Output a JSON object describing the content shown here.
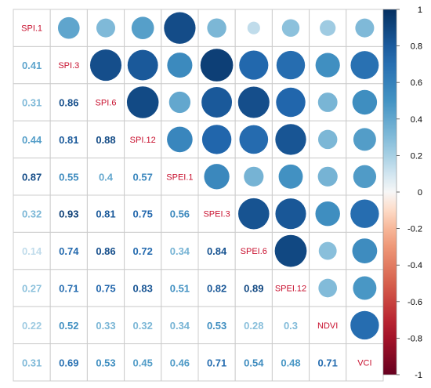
{
  "chart_data": {
    "type": "heatmap",
    "subtype": "correlation-matrix",
    "variables": [
      "SPI.1",
      "SPI.3",
      "SPI.6",
      "SPI.12",
      "SPEI.1",
      "SPEI.3",
      "SPEI.6",
      "SPEI.12",
      "NDVI",
      "VCI"
    ],
    "matrix": [
      [
        1,
        0.41,
        0.31,
        0.44,
        0.87,
        0.32,
        0.14,
        0.27,
        0.22,
        0.31
      ],
      [
        0.41,
        1,
        0.86,
        0.81,
        0.55,
        0.93,
        0.74,
        0.71,
        0.52,
        0.69
      ],
      [
        0.31,
        0.86,
        1,
        0.88,
        0.4,
        0.81,
        0.86,
        0.75,
        0.33,
        0.53
      ],
      [
        0.44,
        0.81,
        0.88,
        1,
        0.57,
        0.75,
        0.72,
        0.83,
        0.32,
        0.45
      ],
      [
        0.87,
        0.55,
        0.4,
        0.57,
        1,
        0.56,
        0.34,
        0.51,
        0.34,
        0.46
      ],
      [
        0.32,
        0.93,
        0.81,
        0.75,
        0.56,
        1,
        0.84,
        0.82,
        0.53,
        0.71
      ],
      [
        0.14,
        0.74,
        0.86,
        0.72,
        0.34,
        0.84,
        1,
        0.89,
        0.28,
        0.54
      ],
      [
        0.27,
        0.71,
        0.75,
        0.83,
        0.51,
        0.82,
        0.89,
        1,
        0.3,
        0.48
      ],
      [
        0.22,
        0.52,
        0.33,
        0.32,
        0.34,
        0.53,
        0.28,
        0.3,
        1,
        0.71
      ],
      [
        0.31,
        0.69,
        0.53,
        0.45,
        0.46,
        0.71,
        0.54,
        0.48,
        0.71,
        1
      ]
    ],
    "lower_triangle": "numbers",
    "upper_triangle": "circles",
    "diagonal": "labels",
    "value_range": [
      -1,
      1
    ],
    "colorbar": {
      "ticks": [
        1,
        0.8,
        0.6,
        0.4,
        0.2,
        0,
        -0.2,
        -0.4,
        -0.6,
        -0.8,
        -1
      ],
      "tick_labels": [
        "1",
        "0.8",
        "0.6",
        "0.4",
        "0.2",
        "0",
        "-0.2",
        "-0.4",
        "-0.6",
        "-0.8",
        "-1"
      ],
      "placement": "right"
    },
    "colors": {
      "negative_end": "#67001f",
      "neutral": "#f7f7f7",
      "positive_end": "#053061",
      "diag_label": "#c8102e",
      "grid": "#cccccc"
    },
    "grid": true
  }
}
